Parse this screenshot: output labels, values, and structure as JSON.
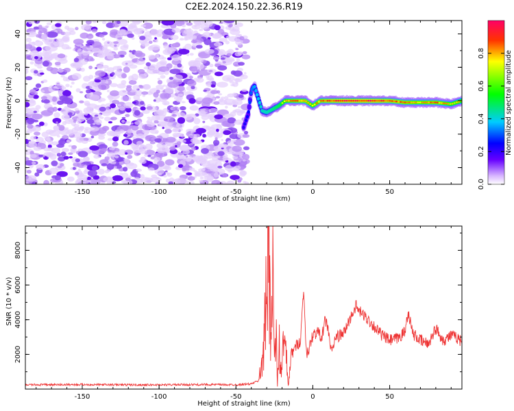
{
  "title": "C2E2.2024.150.22.36.R19",
  "chart_data": [
    {
      "type": "heatmap",
      "xlabel": "Height of straight line (km)",
      "ylabel": "Frequency (Hz)",
      "xlim": [
        -187,
        97
      ],
      "ylim": [
        -50,
        48
      ],
      "x_ticks": [
        -150,
        -100,
        -50,
        0,
        50
      ],
      "y_ticks": [
        -40,
        -20,
        0,
        20,
        40
      ],
      "colorbar": {
        "label": "Normalized spectral amplitude",
        "range": [
          0,
          1
        ],
        "ticks": [
          0.0,
          0.2,
          0.4,
          0.6,
          0.8
        ]
      },
      "noise_region": {
        "x_range": [
          -187,
          -43
        ],
        "y_range": [
          -50,
          48
        ],
        "amplitude": 0.15
      },
      "signal_track": {
        "x": [
          -45,
          -42,
          -40,
          -38,
          -36,
          -33,
          -30,
          -26,
          -22,
          -18,
          -14,
          -10,
          -5,
          0,
          5,
          10,
          20,
          30,
          40,
          50,
          60,
          70,
          80,
          90,
          97
        ],
        "y": [
          -16,
          -8,
          6,
          9,
          3,
          -6,
          -7,
          -5,
          -3,
          0,
          0,
          0,
          0,
          -3,
          0,
          0,
          0,
          0,
          0,
          0,
          -1,
          -1,
          -1,
          -2,
          0
        ],
        "amplitude": [
          0.3,
          0.35,
          0.45,
          0.5,
          0.55,
          0.6,
          0.6,
          0.65,
          0.7,
          0.8,
          0.85,
          0.9,
          0.9,
          0.8,
          0.9,
          0.95,
          1.0,
          1.0,
          1.0,
          0.95,
          0.9,
          0.85,
          0.9,
          0.8,
          0.8
        ]
      }
    },
    {
      "type": "line",
      "xlabel": "Height of straight line (km)",
      "ylabel": "SNR (10 * v/v)",
      "xlim": [
        -187,
        97
      ],
      "ylim": [
        0,
        9400
      ],
      "x_ticks": [
        -150,
        -100,
        -50,
        0,
        50
      ],
      "y_ticks": [
        2000,
        4000,
        6000,
        8000
      ],
      "color": "#ee3333",
      "series": [
        {
          "x": [
            -187,
            -170,
            -150,
            -130,
            -110,
            -90,
            -70,
            -50,
            -40,
            -35,
            -32,
            -30,
            -29,
            -28,
            -27,
            -26,
            -25,
            -24,
            -23,
            -22,
            -21,
            -20,
            -18,
            -16,
            -14,
            -12,
            -10,
            -8,
            -6,
            -4,
            -2,
            0,
            3,
            6,
            8,
            10,
            12,
            15,
            20,
            25,
            28,
            30,
            35,
            40,
            45,
            50,
            55,
            60,
            62,
            65,
            70,
            75,
            80,
            85,
            90,
            95,
            97
          ],
          "y": [
            250,
            250,
            260,
            250,
            240,
            250,
            260,
            250,
            300,
            500,
            2500,
            5200,
            9300,
            6500,
            4000,
            6800,
            1500,
            3200,
            200,
            3000,
            700,
            2100,
            2500,
            200,
            2000,
            2300,
            2600,
            2800,
            5800,
            1800,
            2500,
            3100,
            3300,
            3000,
            4000,
            3500,
            2100,
            3000,
            3200,
            4200,
            4800,
            4500,
            4100,
            3600,
            3100,
            2800,
            2900,
            3300,
            4500,
            3200,
            2800,
            2600,
            3500,
            2800,
            3100,
            2900,
            2700
          ]
        }
      ]
    }
  ]
}
